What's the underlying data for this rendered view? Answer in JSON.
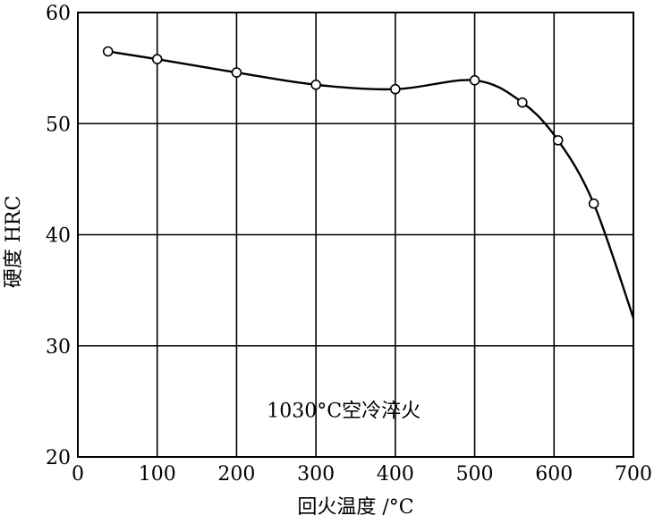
{
  "chart_data": {
    "type": "line",
    "title": "",
    "xlabel": "回火温度 /°C",
    "ylabel": "硬度 HRC",
    "annotation": "1030°C空冷淬火",
    "xlim": [
      0,
      700
    ],
    "ylim": [
      20,
      60
    ],
    "xticks": [
      "0",
      "100",
      "200",
      "300",
      "400",
      "500",
      "600",
      "700"
    ],
    "yticks": [
      "20",
      "30",
      "40",
      "50",
      "60"
    ],
    "grid": true,
    "series": [
      {
        "x": [
          38,
          100,
          200,
          300,
          400,
          500,
          560,
          605,
          650
        ],
        "y": [
          56.5,
          55.8,
          54.6,
          53.5,
          53.1,
          53.9,
          51.9,
          48.5,
          42.8
        ]
      }
    ],
    "curve_end": {
      "x": 700,
      "y": 32.5
    }
  }
}
